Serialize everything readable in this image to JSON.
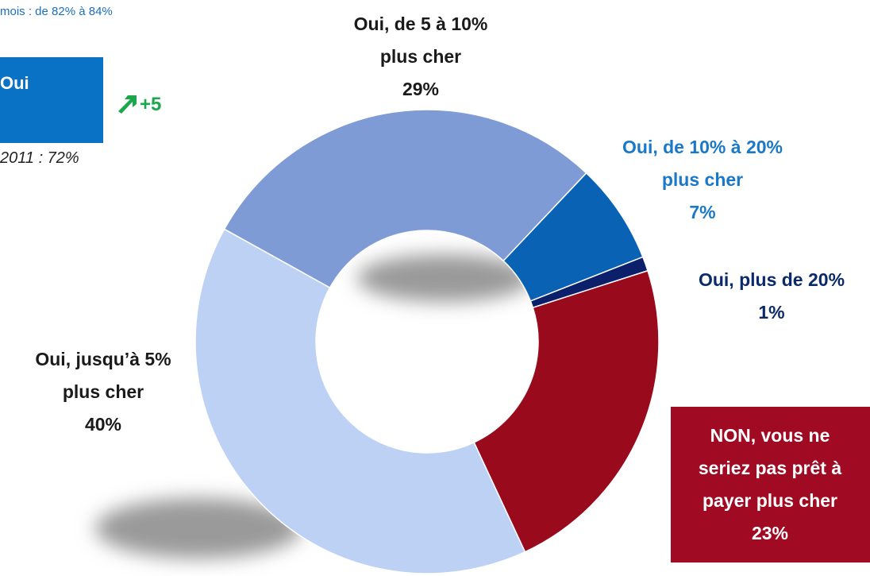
{
  "chart_data": {
    "type": "donut",
    "categories": [
      "Oui, de 5 à 10%\nplus cher",
      "Oui, de 10% à 20%\nplus cher",
      "Oui, plus de 20%",
      "NON, vous ne\nseriez pas prêt à\npayer plus cher",
      "Oui, jusqu’à 5%\nplus cher"
    ],
    "values": [
      29,
      7,
      1,
      23,
      40
    ],
    "value_labels": [
      "29%",
      "7%",
      "1%",
      "23%",
      "40%"
    ],
    "colors": [
      "#7f9bd6",
      "#0a62b4",
      "#0b1f6b",
      "#980a1c",
      "#bcd1f3"
    ],
    "label_colors": [
      "#1a1a1a",
      "#1a78c8",
      "#0b2a6b",
      "#ffffff",
      "#1a1a1a"
    ],
    "annotations": {
      "top_note": "mois : de 82% à 84%",
      "box": "Oui",
      "change": "+5",
      "previous": "2011 : 72%"
    }
  }
}
